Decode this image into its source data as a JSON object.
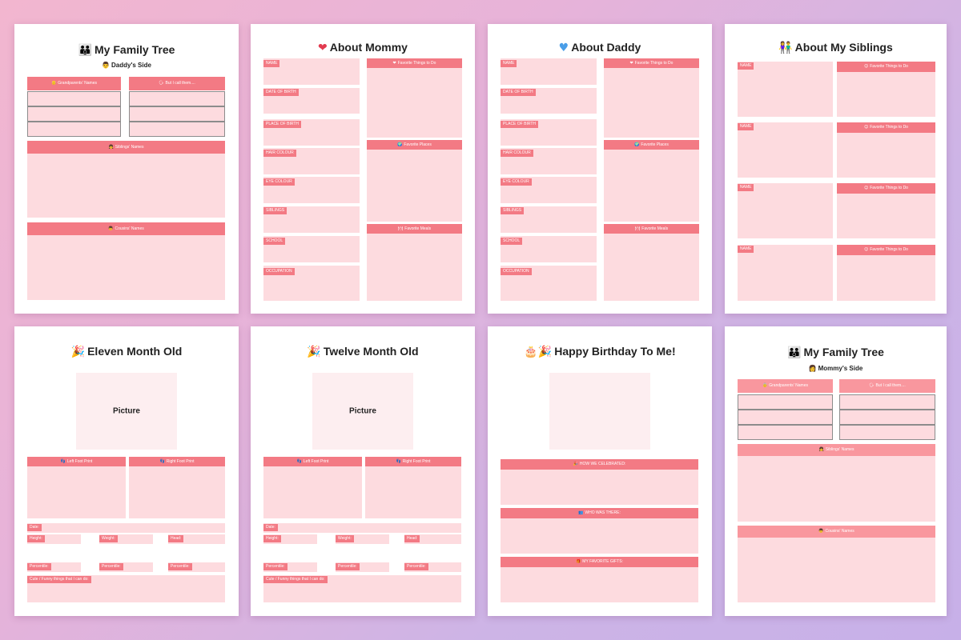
{
  "pages": {
    "family_daddy": {
      "title": "My Family Tree",
      "title_icon": "👪",
      "subtitle": "Daddy's Side",
      "subtitle_icon": "👨",
      "grandparents_label": "Grandparents' Names",
      "grandparents_icon": "👴",
      "call_label": "But I call them....",
      "call_icon": "🗣",
      "siblings_label": "Siblings' Names",
      "siblings_icon": "👧",
      "cousins_label": "Cousins' Names",
      "cousins_icon": "👦"
    },
    "mommy": {
      "title": "About Mommy",
      "title_icon": "❤",
      "fields": [
        "NAME",
        "DATE OF BIRTH",
        "PLACE OF BIRTH",
        "HAIR COLOUR",
        "EYE COLOUR",
        "SIBLINGS",
        "SCHOOL",
        "OCCUPATION"
      ],
      "favorite_things": "Favorite Things to Do",
      "favorite_things_icon": "❤",
      "favorite_places": "Favorite Places",
      "favorite_places_icon": "🌍",
      "favorite_meals": "Favorite Meals",
      "favorite_meals_icon": "🍽"
    },
    "daddy": {
      "title": "About Daddy",
      "title_icon": "♥",
      "fields": [
        "NAME",
        "DATE OF BIRTH",
        "PLACE OF BIRTH",
        "HAIR COLOUR",
        "EYE COLOUR",
        "SIBLINGS",
        "SCHOOL",
        "OCCUPATION"
      ],
      "favorite_things": "Favorite Things to Do",
      "favorite_things_icon": "❤",
      "favorite_places": "Favorite Places",
      "favorite_places_icon": "🌍",
      "favorite_meals": "Favorite Meals",
      "favorite_meals_icon": "🍽"
    },
    "siblings": {
      "title": "About My Siblings",
      "title_icon": "👫",
      "name_label": "NAME",
      "favorite_things": "Favorite Things to Do",
      "favorite_things_icon": "☺"
    },
    "eleven": {
      "title": "Eleven Month Old",
      "title_icon": "🎉",
      "picture_label": "Picture",
      "left_foot": "Left Foot Print",
      "left_foot_icon": "👣",
      "right_foot": "Right Foot Print",
      "right_foot_icon": "👣",
      "date": "Date:",
      "height": "Height:",
      "weight": "Weight:",
      "head": "Head:",
      "percentile": "Percentile:",
      "funny": "Cute / Funny things that I can do:"
    },
    "twelve": {
      "title": "Twelve Month Old",
      "title_icon": "🎉",
      "picture_label": "Picture",
      "left_foot": "Left Foot Print",
      "left_foot_icon": "👣",
      "right_foot": "Right Foot Print",
      "right_foot_icon": "👣",
      "date": "Date:",
      "height": "Height:",
      "weight": "Weight:",
      "head": "Head:",
      "percentile": "Percentile:",
      "funny": "Cute / Funny things that I can do:"
    },
    "birthday": {
      "title": "Happy Birthday To Me!",
      "title_icon": "🎂🎉",
      "celebrated": "HOW WE CELEBRATED:",
      "celebrated_icon": "🎉",
      "who": "WHO WAS THERE:",
      "who_icon": "👥",
      "gifts": "MY FAVORITE GIFTS:",
      "gifts_icon": "🎁"
    },
    "family_mommy": {
      "title": "My Family Tree",
      "title_icon": "👪",
      "subtitle": "Mommy's Side",
      "subtitle_icon": "👩",
      "grandparents_label": "Grandparents' Names",
      "grandparents_icon": "👵",
      "call_label": "But I call them....",
      "call_icon": "🗣",
      "siblings_label": "Siblings' Names",
      "siblings_icon": "👧",
      "cousins_label": "Cousins' Names",
      "cousins_icon": "👦"
    }
  },
  "colors": {
    "header": "#f37a84",
    "header_light": "#f9979e",
    "field": "#fddbdf",
    "picture": "#fdeef0"
  }
}
